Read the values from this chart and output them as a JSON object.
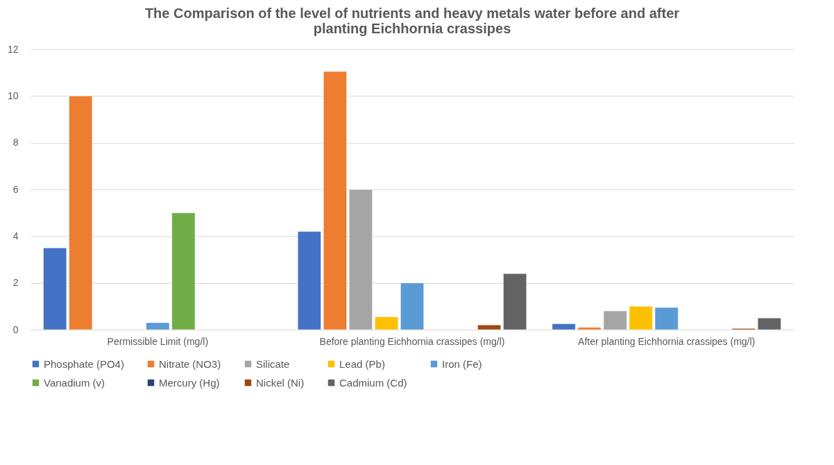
{
  "chart_data": {
    "type": "bar",
    "title": "The Comparison of the level of nutrients and heavy metals water before and after planting Eichhornia crassipes",
    "categories": [
      "Permissible Limit (mg/l)",
      "Before planting Eichhornia crassipes (mg/l)",
      "After planting Eichhornia crassipes (mg/l)"
    ],
    "series": [
      {
        "name": "Phosphate (PO4)",
        "color": "#4472c4",
        "values": [
          3.5,
          4.2,
          0.25
        ]
      },
      {
        "name": "Nitrate (NO3)",
        "color": "#ed7d31",
        "values": [
          10,
          11.05,
          0.1
        ]
      },
      {
        "name": "Silicate",
        "color": "#a5a5a5",
        "values": [
          null,
          6,
          0.8
        ]
      },
      {
        "name": "Lead (Pb)",
        "color": "#ffc000",
        "values": [
          null,
          0.55,
          1
        ]
      },
      {
        "name": "Iron (Fe)",
        "color": "#5b9bd5",
        "values": [
          0.3,
          2,
          0.95
        ]
      },
      {
        "name": "Vanadium (v)",
        "color": "#70ad47",
        "values": [
          5,
          null,
          null
        ]
      },
      {
        "name": "Mercury (Hg)",
        "color": "#264478",
        "values": [
          null,
          null,
          null
        ]
      },
      {
        "name": "Nickel (Ni)",
        "color": "#9e480e",
        "values": [
          null,
          0.2,
          0.05
        ]
      },
      {
        "name": "Cadmium (Cd)",
        "color": "#636363",
        "values": [
          null,
          2.4,
          0.5
        ]
      }
    ],
    "ylim": [
      0,
      12
    ],
    "yticks": [
      0,
      2,
      4,
      6,
      8,
      10,
      12
    ],
    "grid": "y",
    "legend": "bottom"
  }
}
